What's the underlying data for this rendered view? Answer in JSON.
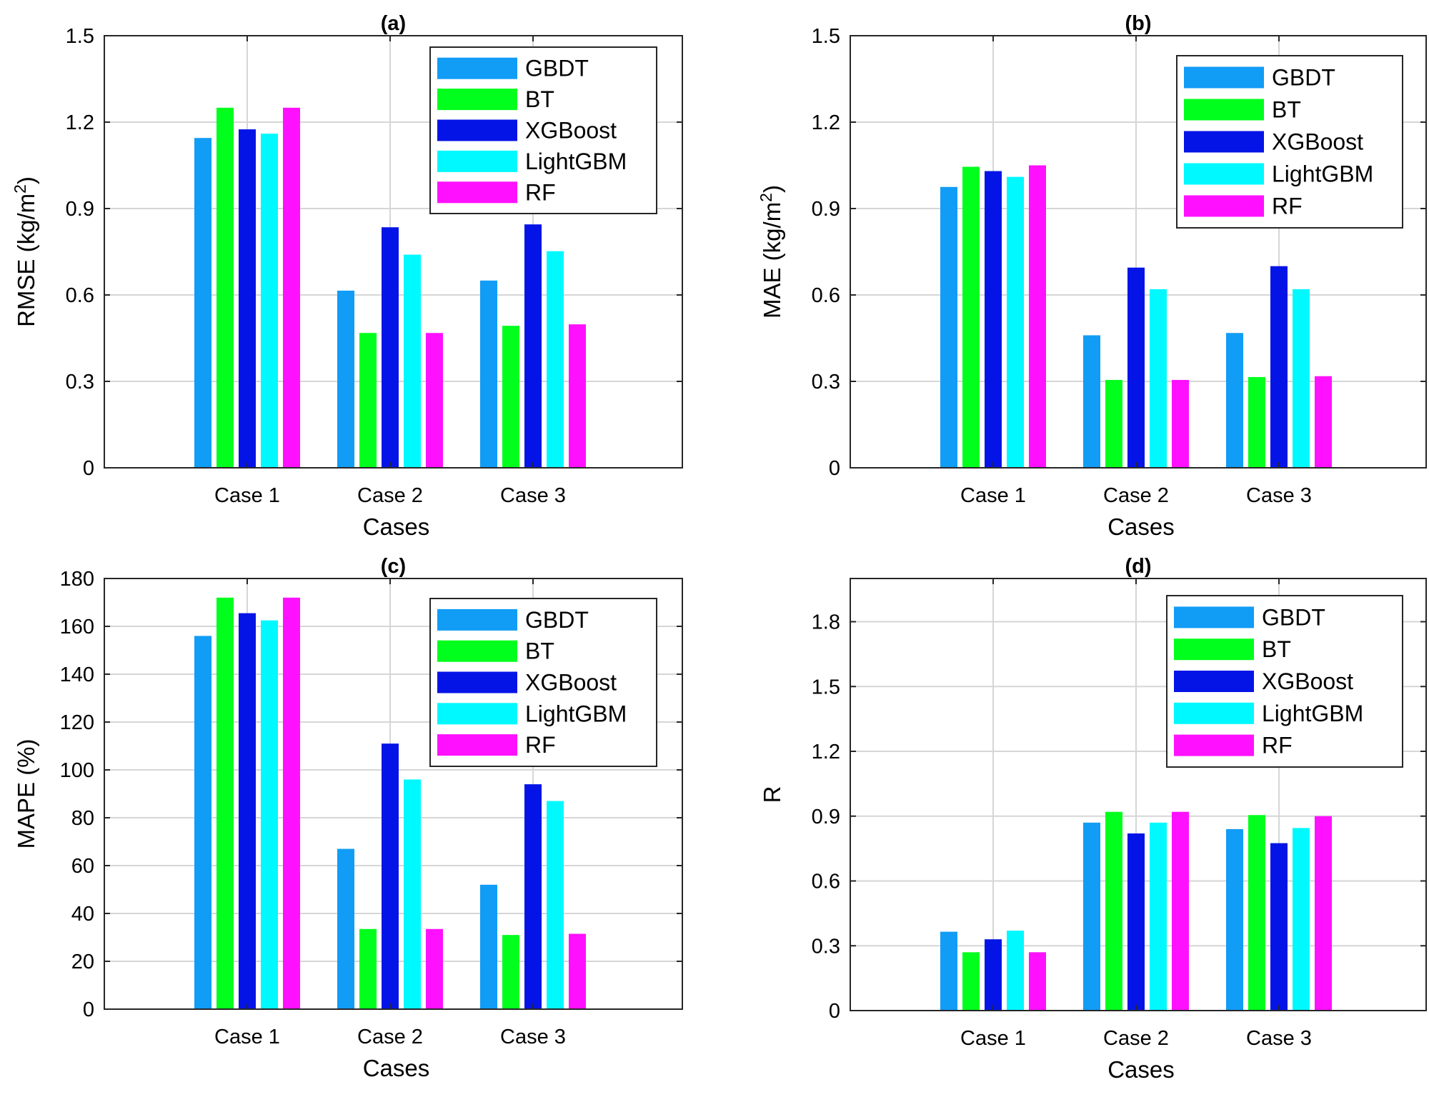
{
  "chart_data": [
    {
      "type": "bar",
      "title": "(a)",
      "ylabel": "RMSE (kg/m²)",
      "ylabel_main": "RMSE (kg/m",
      "ylabel_sup": "2",
      "ylabel_tail": ")",
      "xlabel": "Cases",
      "categories": [
        "Case 1",
        "Case 2",
        "Case 3"
      ],
      "ylim": [
        0,
        1.5
      ],
      "yticks": [
        "0",
        "0.3",
        "0.6",
        "0.9",
        "1.2",
        "1.5"
      ],
      "grid": true,
      "legend_position": "top-right",
      "series": [
        {
          "name": "GBDT",
          "color": "#119cf6",
          "values": [
            1.145,
            0.615,
            0.65
          ]
        },
        {
          "name": "BT",
          "color": "#00ff1c",
          "values": [
            1.25,
            0.468,
            0.493
          ]
        },
        {
          "name": "XGBoost",
          "color": "#0514e6",
          "values": [
            1.175,
            0.835,
            0.845
          ]
        },
        {
          "name": "LightGBM",
          "color": "#00f9ff",
          "values": [
            1.16,
            0.74,
            0.752
          ]
        },
        {
          "name": "RF",
          "color": "#ff11ff",
          "values": [
            1.25,
            0.468,
            0.498
          ]
        }
      ]
    },
    {
      "type": "bar",
      "title": "(b)",
      "ylabel": "MAE (kg/m²)",
      "ylabel_main": "MAE (kg/m",
      "ylabel_sup": "2",
      "ylabel_tail": ")",
      "xlabel": "Cases",
      "categories": [
        "Case 1",
        "Case 2",
        "Case 3"
      ],
      "ylim": [
        0,
        1.5
      ],
      "yticks": [
        "0",
        "0.3",
        "0.6",
        "0.9",
        "1.2",
        "1.5"
      ],
      "grid": true,
      "legend_position": "top-right",
      "series": [
        {
          "name": "GBDT",
          "color": "#119cf6",
          "values": [
            0.975,
            0.46,
            0.468
          ]
        },
        {
          "name": "BT",
          "color": "#00ff1c",
          "values": [
            1.045,
            0.305,
            0.315
          ]
        },
        {
          "name": "XGBoost",
          "color": "#0514e6",
          "values": [
            1.03,
            0.695,
            0.7
          ]
        },
        {
          "name": "LightGBM",
          "color": "#00f9ff",
          "values": [
            1.01,
            0.62,
            0.62
          ]
        },
        {
          "name": "RF",
          "color": "#ff11ff",
          "values": [
            1.05,
            0.305,
            0.318
          ]
        }
      ]
    },
    {
      "type": "bar",
      "title": "(c)",
      "ylabel": "MAPE (%)",
      "ylabel_main": "MAPE (%)",
      "ylabel_sup": "",
      "ylabel_tail": "",
      "xlabel": "Cases",
      "categories": [
        "Case 1",
        "Case 2",
        "Case 3"
      ],
      "ylim": [
        0,
        180
      ],
      "yticks": [
        "0",
        "20",
        "40",
        "60",
        "80",
        "100",
        "120",
        "140",
        "160",
        "180"
      ],
      "grid": true,
      "legend_position": "top-right",
      "series": [
        {
          "name": "GBDT",
          "color": "#119cf6",
          "values": [
            156,
            67,
            52
          ]
        },
        {
          "name": "BT",
          "color": "#00ff1c",
          "values": [
            172,
            33.5,
            31
          ]
        },
        {
          "name": "XGBoost",
          "color": "#0514e6",
          "values": [
            165.5,
            111,
            94
          ]
        },
        {
          "name": "LightGBM",
          "color": "#00f9ff",
          "values": [
            162.5,
            96,
            87
          ]
        },
        {
          "name": "RF",
          "color": "#ff11ff",
          "values": [
            172,
            33.5,
            31.5
          ]
        }
      ]
    },
    {
      "type": "bar",
      "title": "(d)",
      "ylabel": "R",
      "ylabel_main": "R",
      "ylabel_sup": "",
      "ylabel_tail": "",
      "xlabel": "Cases",
      "categories": [
        "Case 1",
        "Case 2",
        "Case 3"
      ],
      "ylim": [
        0,
        2.0
      ],
      "yticks": [
        "0",
        "0.3",
        "0.6",
        "0.9",
        "1.2",
        "1.5",
        "1.8"
      ],
      "grid": true,
      "legend_position": "top-right",
      "series": [
        {
          "name": "GBDT",
          "color": "#119cf6",
          "values": [
            0.365,
            0.87,
            0.84
          ]
        },
        {
          "name": "BT",
          "color": "#00ff1c",
          "values": [
            0.27,
            0.92,
            0.905
          ]
        },
        {
          "name": "XGBoost",
          "color": "#0514e6",
          "values": [
            0.33,
            0.82,
            0.775
          ]
        },
        {
          "name": "LightGBM",
          "color": "#00f9ff",
          "values": [
            0.37,
            0.87,
            0.845
          ]
        },
        {
          "name": "RF",
          "color": "#ff11ff",
          "values": [
            0.27,
            0.92,
            0.9
          ]
        }
      ]
    }
  ]
}
